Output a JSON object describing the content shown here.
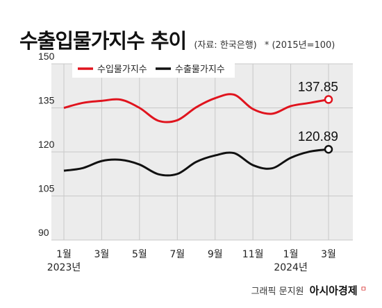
{
  "header": {
    "title": "수출입물가지수 추이",
    "source": "(자료: 한국은행)",
    "base_note": "* (2015년=100)"
  },
  "credit": {
    "text": "그래픽 문지원",
    "brand": "아시아경제",
    "mark": "ㅁ"
  },
  "chart_data": {
    "type": "line",
    "x": [
      "2023-01",
      "2023-02",
      "2023-03",
      "2023-04",
      "2023-05",
      "2023-06",
      "2023-07",
      "2023-08",
      "2023-09",
      "2023-10",
      "2023-11",
      "2023-12",
      "2024-01",
      "2024-02",
      "2024-03"
    ],
    "x_tick_labels": [
      "1월",
      "",
      "3월",
      "",
      "5월",
      "",
      "7월",
      "",
      "9월",
      "",
      "11월",
      "",
      "1월",
      "",
      "3월"
    ],
    "year_labels": [
      {
        "index": 0,
        "label": "2023년"
      },
      {
        "index": 12,
        "label": "2024년"
      }
    ],
    "ylim": [
      90,
      150
    ],
    "y_ticks": [
      90,
      105,
      120,
      135,
      150
    ],
    "grid": true,
    "legend_position": "top-left",
    "series": [
      {
        "name": "수입물가지수",
        "color": "#e0141e",
        "values": [
          135.0,
          136.7,
          137.4,
          137.8,
          135.0,
          130.6,
          130.8,
          135.2,
          138.3,
          139.5,
          134.6,
          133.0,
          135.6,
          136.7,
          137.85
        ],
        "end_label": "137.85"
      },
      {
        "name": "수출물가지수",
        "color": "#111111",
        "values": [
          113.6,
          114.5,
          116.9,
          117.3,
          115.7,
          112.4,
          112.5,
          116.6,
          118.8,
          119.6,
          115.5,
          114.4,
          118.0,
          120.1,
          120.89
        ],
        "end_label": "120.89"
      }
    ]
  }
}
